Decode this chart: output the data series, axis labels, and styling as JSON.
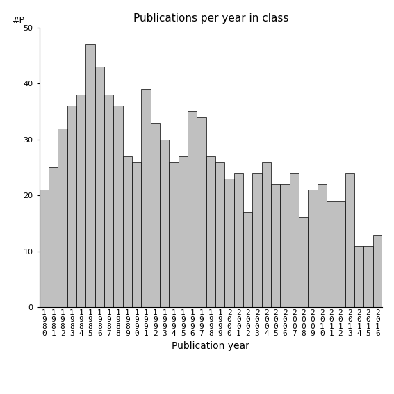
{
  "title": "Publications per year in class",
  "xlabel": "Publication year",
  "ylabel": "#P",
  "years": [
    1980,
    1981,
    1982,
    1983,
    1984,
    1985,
    1986,
    1987,
    1988,
    1989,
    1990,
    1991,
    1992,
    1993,
    1994,
    1995,
    1996,
    1997,
    1998,
    1999,
    2000,
    2001,
    2002,
    2003,
    2004,
    2005,
    2006,
    2007,
    2008,
    2009,
    2010,
    2011,
    2012,
    2013,
    2014,
    2015,
    2016
  ],
  "values": [
    21,
    25,
    32,
    36,
    38,
    47,
    43,
    38,
    36,
    27,
    26,
    39,
    33,
    30,
    26,
    27,
    35,
    34,
    27,
    26,
    23,
    24,
    17,
    24,
    26,
    22,
    22,
    24,
    16,
    21,
    22,
    19,
    19,
    24,
    11,
    11,
    13
  ],
  "bar_color": "#c0c0c0",
  "bar_edge_color": "#000000",
  "ylim": [
    0,
    50
  ],
  "yticks": [
    0,
    10,
    20,
    30,
    40,
    50
  ],
  "background_color": "#ffffff",
  "title_fontsize": 11,
  "axis_label_fontsize": 10,
  "tick_fontsize": 8,
  "ylabel_fontsize": 9
}
